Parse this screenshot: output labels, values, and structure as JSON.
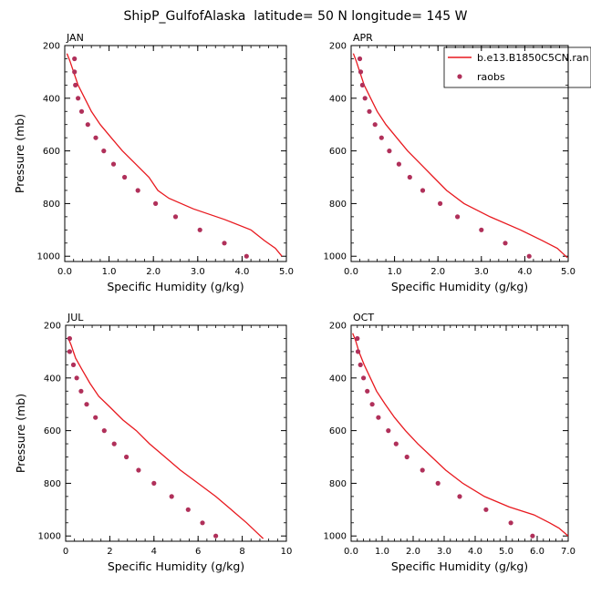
{
  "figure": {
    "title": "ShipP_GulfofAlaska  latitude= 50 N longitude= 145 W"
  },
  "legend": {
    "model_label": "b.e13.B1850C5CN.ran",
    "obs_label": "raobs",
    "model_color": "#e8191f",
    "obs_color": "#b0305a"
  },
  "chart_data": [
    {
      "type": "line",
      "panel": "JAN",
      "title": "JAN",
      "xlabel": "Specific Humidity (g/kg)",
      "ylabel": "Pressure (mb)",
      "xlim": [
        0,
        5
      ],
      "ylim": [
        1020,
        200
      ],
      "xticks": [
        0,
        1,
        2,
        3,
        4,
        5
      ],
      "xticklabels": [
        "0.0",
        "1.0",
        "2.0",
        "3.0",
        "4.0",
        "5.0"
      ],
      "yticks": [
        200,
        400,
        600,
        800,
        1000
      ],
      "yticklabels": [
        "200",
        "400",
        "600",
        "800",
        "1000"
      ],
      "has_legend": true,
      "series": [
        {
          "name": "b.e13.B1850C5CN.ran",
          "kind": "line",
          "color": "#e8191f",
          "points": [
            [
              0.05,
              230
            ],
            [
              0.12,
              260
            ],
            [
              0.2,
              300
            ],
            [
              0.3,
              350
            ],
            [
              0.45,
              400
            ],
            [
              0.6,
              450
            ],
            [
              0.8,
              500
            ],
            [
              1.05,
              550
            ],
            [
              1.3,
              600
            ],
            [
              1.6,
              650
            ],
            [
              1.9,
              700
            ],
            [
              2.1,
              750
            ],
            [
              2.35,
              780
            ],
            [
              2.9,
              820
            ],
            [
              3.6,
              860
            ],
            [
              4.2,
              900
            ],
            [
              4.5,
              940
            ],
            [
              4.75,
              970
            ],
            [
              4.9,
              1000
            ]
          ]
        },
        {
          "name": "raobs",
          "kind": "scatter",
          "color": "#b0305a",
          "points": [
            [
              0.22,
              250
            ],
            [
              0.22,
              300
            ],
            [
              0.24,
              350
            ],
            [
              0.3,
              400
            ],
            [
              0.38,
              450
            ],
            [
              0.52,
              500
            ],
            [
              0.7,
              550
            ],
            [
              0.88,
              600
            ],
            [
              1.1,
              650
            ],
            [
              1.35,
              700
            ],
            [
              1.65,
              750
            ],
            [
              2.05,
              800
            ],
            [
              2.5,
              850
            ],
            [
              3.05,
              900
            ],
            [
              3.6,
              950
            ],
            [
              4.1,
              1000
            ]
          ]
        }
      ]
    },
    {
      "type": "line",
      "panel": "APR",
      "title": "APR",
      "xlabel": "Specific Humidity (g/kg)",
      "ylabel": "",
      "xlim": [
        0,
        5
      ],
      "ylim": [
        1020,
        200
      ],
      "xticks": [
        0,
        1,
        2,
        3,
        4,
        5
      ],
      "xticklabels": [
        "0.0",
        "1.0",
        "2.0",
        "3.0",
        "4.0",
        "5.0"
      ],
      "yticks": [
        200,
        400,
        600,
        800,
        1000
      ],
      "yticklabels": [
        "200",
        "400",
        "600",
        "800",
        "1000"
      ],
      "has_legend": false,
      "series": [
        {
          "name": "b.e13.B1850C5CN.ran",
          "kind": "line",
          "color": "#e8191f",
          "points": [
            [
              0.05,
              230
            ],
            [
              0.12,
              260
            ],
            [
              0.2,
              300
            ],
            [
              0.3,
              350
            ],
            [
              0.45,
              400
            ],
            [
              0.6,
              450
            ],
            [
              0.8,
              500
            ],
            [
              1.05,
              550
            ],
            [
              1.3,
              600
            ],
            [
              1.6,
              650
            ],
            [
              1.9,
              700
            ],
            [
              2.2,
              750
            ],
            [
              2.6,
              800
            ],
            [
              3.2,
              850
            ],
            [
              3.9,
              900
            ],
            [
              4.4,
              940
            ],
            [
              4.75,
              970
            ],
            [
              4.98,
              1005
            ]
          ]
        },
        {
          "name": "raobs",
          "kind": "scatter",
          "color": "#b0305a",
          "points": [
            [
              0.2,
              250
            ],
            [
              0.22,
              300
            ],
            [
              0.26,
              350
            ],
            [
              0.32,
              400
            ],
            [
              0.42,
              450
            ],
            [
              0.55,
              500
            ],
            [
              0.7,
              550
            ],
            [
              0.88,
              600
            ],
            [
              1.1,
              650
            ],
            [
              1.35,
              700
            ],
            [
              1.65,
              750
            ],
            [
              2.05,
              800
            ],
            [
              2.45,
              850
            ],
            [
              3.0,
              900
            ],
            [
              3.55,
              950
            ],
            [
              4.1,
              1000
            ]
          ]
        }
      ]
    },
    {
      "type": "line",
      "panel": "JUL",
      "title": "JUL",
      "xlabel": "Specific Humidity (g/kg)",
      "ylabel": "Pressure (mb)",
      "xlim": [
        0,
        10
      ],
      "ylim": [
        1020,
        200
      ],
      "xticks": [
        0,
        2,
        4,
        6,
        8,
        10
      ],
      "xticklabels": [
        "0",
        "2",
        "4",
        "6",
        "8",
        "10"
      ],
      "yticks": [
        200,
        400,
        600,
        800,
        1000
      ],
      "yticklabels": [
        "200",
        "400",
        "600",
        "800",
        "1000"
      ],
      "has_legend": false,
      "series": [
        {
          "name": "b.e13.B1850C5CN.ran",
          "kind": "line",
          "color": "#e8191f",
          "points": [
            [
              0.1,
              245
            ],
            [
              0.25,
              275
            ],
            [
              0.45,
              325
            ],
            [
              0.75,
              370
            ],
            [
              1.1,
              420
            ],
            [
              1.5,
              470
            ],
            [
              2.0,
              510
            ],
            [
              2.6,
              560
            ],
            [
              3.2,
              600
            ],
            [
              3.8,
              650
            ],
            [
              4.5,
              700
            ],
            [
              5.2,
              750
            ],
            [
              6.0,
              800
            ],
            [
              6.8,
              850
            ],
            [
              7.5,
              900
            ],
            [
              8.2,
              950
            ],
            [
              8.7,
              990
            ],
            [
              8.95,
              1010
            ]
          ]
        },
        {
          "name": "raobs",
          "kind": "scatter",
          "color": "#b0305a",
          "points": [
            [
              0.18,
              250
            ],
            [
              0.18,
              300
            ],
            [
              0.35,
              350
            ],
            [
              0.5,
              400
            ],
            [
              0.7,
              450
            ],
            [
              0.95,
              500
            ],
            [
              1.35,
              550
            ],
            [
              1.75,
              600
            ],
            [
              2.2,
              650
            ],
            [
              2.75,
              700
            ],
            [
              3.3,
              750
            ],
            [
              4.0,
              800
            ],
            [
              4.8,
              850
            ],
            [
              5.55,
              900
            ],
            [
              6.2,
              950
            ],
            [
              6.8,
              1000
            ]
          ]
        }
      ]
    },
    {
      "type": "line",
      "panel": "OCT",
      "title": "OCT",
      "xlabel": "Specific Humidity (g/kg)",
      "ylabel": "",
      "xlim": [
        0,
        7
      ],
      "ylim": [
        1020,
        200
      ],
      "xticks": [
        0,
        1,
        2,
        3,
        4,
        5,
        6,
        7
      ],
      "xticklabels": [
        "0.0",
        "1.0",
        "2.0",
        "3.0",
        "4.0",
        "5.0",
        "6.0",
        "7.0"
      ],
      "yticks": [
        200,
        400,
        600,
        800,
        1000
      ],
      "yticklabels": [
        "200",
        "400",
        "600",
        "800",
        "1000"
      ],
      "has_legend": false,
      "series": [
        {
          "name": "b.e13.B1850C5CN.ran",
          "kind": "line",
          "color": "#e8191f",
          "points": [
            [
              0.05,
              230
            ],
            [
              0.15,
              260
            ],
            [
              0.25,
              300
            ],
            [
              0.42,
              350
            ],
            [
              0.62,
              400
            ],
            [
              0.82,
              450
            ],
            [
              1.1,
              500
            ],
            [
              1.4,
              550
            ],
            [
              1.75,
              600
            ],
            [
              2.15,
              650
            ],
            [
              2.6,
              700
            ],
            [
              3.05,
              750
            ],
            [
              3.6,
              800
            ],
            [
              4.3,
              850
            ],
            [
              5.1,
              890
            ],
            [
              5.9,
              920
            ],
            [
              6.4,
              950
            ],
            [
              6.7,
              970
            ],
            [
              7.0,
              1000
            ]
          ]
        },
        {
          "name": "raobs",
          "kind": "scatter",
          "color": "#b0305a",
          "points": [
            [
              0.2,
              250
            ],
            [
              0.22,
              300
            ],
            [
              0.3,
              350
            ],
            [
              0.4,
              400
            ],
            [
              0.52,
              450
            ],
            [
              0.68,
              500
            ],
            [
              0.88,
              550
            ],
            [
              1.2,
              600
            ],
            [
              1.45,
              650
            ],
            [
              1.8,
              700
            ],
            [
              2.3,
              750
            ],
            [
              2.8,
              800
            ],
            [
              3.5,
              850
            ],
            [
              4.35,
              900
            ],
            [
              5.15,
              950
            ],
            [
              5.85,
              1000
            ]
          ]
        }
      ]
    }
  ]
}
